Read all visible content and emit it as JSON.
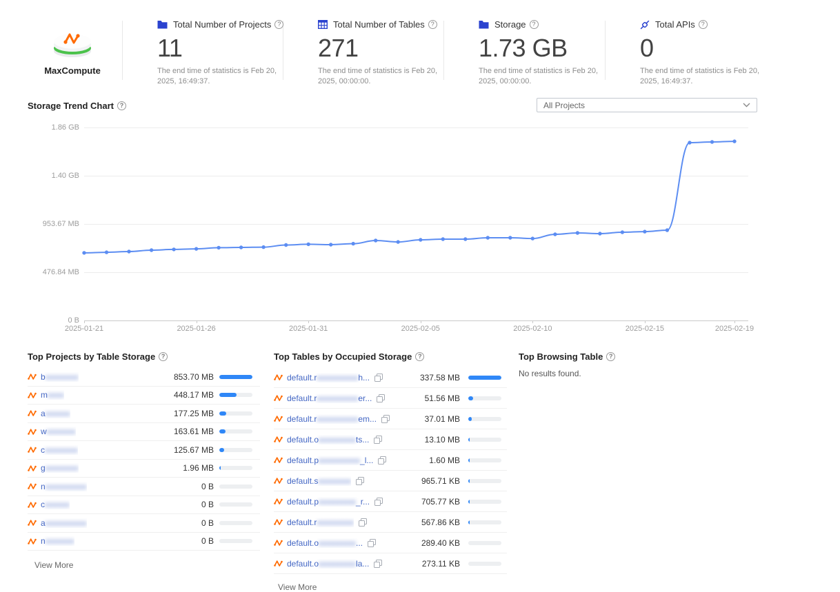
{
  "app": {
    "name": "MaxCompute"
  },
  "stats": [
    {
      "icon": "folder-icon",
      "label": "Total Number of Projects",
      "value": "11",
      "note": "The end time of statistics is Feb 20, 2025, 16:49:37."
    },
    {
      "icon": "table-icon",
      "label": "Total Number of Tables",
      "value": "271",
      "note": "The end time of statistics is Feb 20, 2025, 00:00:00."
    },
    {
      "icon": "folder-icon",
      "label": "Storage",
      "value": "1.73 GB",
      "note": "The end time of statistics is Feb 20, 2025, 00:00:00."
    },
    {
      "icon": "api-icon",
      "label": "Total APIs",
      "value": "0",
      "note": "The end time of statistics is Feb 20, 2025, 16:49:37."
    }
  ],
  "trend": {
    "title": "Storage Trend Chart",
    "filter_value": "All Projects"
  },
  "chart_data": {
    "type": "line",
    "title": "Storage Trend Chart",
    "unit": "MB",
    "grid": true,
    "line_color": "#5c8df2",
    "ylim_mb": [
      0,
      1904.64
    ],
    "y_ticks": [
      "1.86 GB",
      "1.40 GB",
      "953.67 MB",
      "476.84 MB",
      "0 B"
    ],
    "x_ticks": [
      {
        "index": 0,
        "label": "2025-01-21"
      },
      {
        "index": 5,
        "label": "2025-01-26"
      },
      {
        "index": 10,
        "label": "2025-01-31"
      },
      {
        "index": 15,
        "label": "2025-02-05"
      },
      {
        "index": 20,
        "label": "2025-02-10"
      },
      {
        "index": 25,
        "label": "2025-02-15"
      },
      {
        "index": 29,
        "label": "2025-02-19"
      }
    ],
    "x": [
      "2025-01-21",
      "2025-01-22",
      "2025-01-23",
      "2025-01-24",
      "2025-01-25",
      "2025-01-26",
      "2025-01-27",
      "2025-01-28",
      "2025-01-29",
      "2025-01-30",
      "2025-01-31",
      "2025-02-01",
      "2025-02-02",
      "2025-02-03",
      "2025-02-04",
      "2025-02-05",
      "2025-02-06",
      "2025-02-07",
      "2025-02-08",
      "2025-02-09",
      "2025-02-10",
      "2025-02-11",
      "2025-02-12",
      "2025-02-13",
      "2025-02-14",
      "2025-02-15",
      "2025-02-16",
      "2025-02-17",
      "2025-02-18",
      "2025-02-19"
    ],
    "values_mb": [
      667,
      673,
      680,
      694,
      701,
      707,
      718,
      721,
      724,
      745,
      752,
      748,
      758,
      789,
      775,
      796,
      803,
      803,
      816,
      816,
      809,
      850,
      864,
      857,
      871,
      877,
      891,
      1755,
      1762,
      1768
    ]
  },
  "panels": {
    "projects": {
      "title": "Top Projects by Table Storage",
      "view_more": "View More",
      "rows": [
        {
          "prefix": "b",
          "mask": "xxxxxxxx",
          "value": "853.70 MB",
          "pct": 100
        },
        {
          "prefix": "m",
          "mask": "xxxx",
          "value": "448.17 MB",
          "pct": 52
        },
        {
          "prefix": "a",
          "mask": "xxxxxx",
          "value": "177.25 MB",
          "pct": 21
        },
        {
          "prefix": "w",
          "mask": "xxxxxxx",
          "value": "163.61 MB",
          "pct": 19
        },
        {
          "prefix": "c",
          "mask": "xxxxxxxx",
          "value": "125.67 MB",
          "pct": 15
        },
        {
          "prefix": "g",
          "mask": "xxxxxxxx",
          "value": "1.96 MB",
          "pct": 2
        },
        {
          "prefix": "n",
          "mask": "xxxxxxxxxx",
          "value": "0 B",
          "pct": 0
        },
        {
          "prefix": "c",
          "mask": "xxxxxx",
          "value": "0 B",
          "pct": 0
        },
        {
          "prefix": "a",
          "mask": "xxxxxxxxxx",
          "value": "0 B",
          "pct": 0
        },
        {
          "prefix": "n",
          "mask": "xxxxxxx",
          "value": "0 B",
          "pct": 0
        }
      ]
    },
    "tables": {
      "title": "Top Tables by Occupied Storage",
      "view_more": "View More",
      "rows": [
        {
          "prefix": "default.r",
          "mask": "xxxxxxxxxx",
          "suffix": "h...",
          "value": "337.58 MB",
          "pct": 100
        },
        {
          "prefix": "default.r",
          "mask": "xxxxxxxxxx",
          "suffix": "er...",
          "value": "51.56 MB",
          "pct": 15
        },
        {
          "prefix": "default.r",
          "mask": "xxxxxxxxxx",
          "suffix": "em...",
          "value": "37.01 MB",
          "pct": 11
        },
        {
          "prefix": "default.o",
          "mask": "xxxxxxxxx",
          "suffix": "ts...",
          "value": "13.10 MB",
          "pct": 4
        },
        {
          "prefix": "default.p",
          "mask": "xxxxxxxxxx",
          "suffix": "_l...",
          "value": "1.60 MB",
          "pct": 2
        },
        {
          "prefix": "default.s",
          "mask": "xxxxxxxx",
          "suffix": "",
          "value": "965.71 KB",
          "pct": 2
        },
        {
          "prefix": "default.p",
          "mask": "xxxxxxxxx",
          "suffix": "_r...",
          "value": "705.77 KB",
          "pct": 2
        },
        {
          "prefix": "default.r",
          "mask": "xxxxxxxxx",
          "suffix": "",
          "value": "567.86 KB",
          "pct": 2
        },
        {
          "prefix": "default.o",
          "mask": "xxxxxxxxx",
          "suffix": "...",
          "value": "289.40 KB",
          "pct": 0
        },
        {
          "prefix": "default.o",
          "mask": "xxxxxxxxx",
          "suffix": "la...",
          "value": "273.11 KB",
          "pct": 0
        }
      ]
    },
    "browsing": {
      "title": "Top Browsing Table",
      "empty": "No results found."
    }
  },
  "colors": {
    "accent_blue": "#2f87f7",
    "icon_blue": "#2b43cf",
    "brand_orange": "#ff6a00",
    "line_blue": "#5c8df2"
  }
}
